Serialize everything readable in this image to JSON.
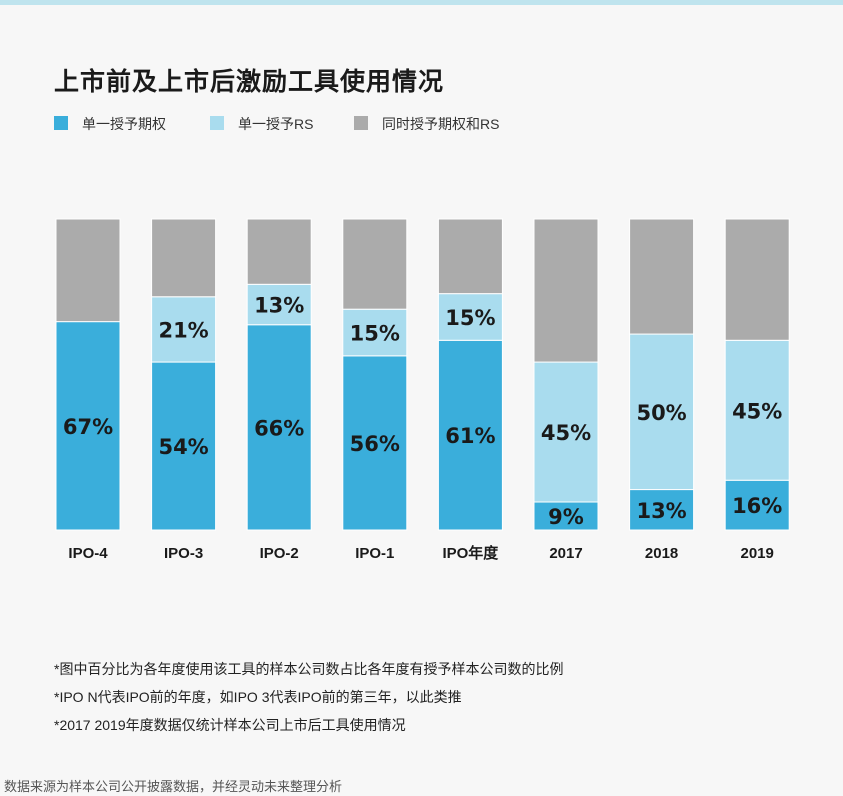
{
  "title": "上市前及上市后激励工具使用情况",
  "legend": [
    {
      "label": "单一授予期权",
      "color": "#3aaedb"
    },
    {
      "label": "单一授予RS",
      "color": "#a9dcee"
    },
    {
      "label": "同时授予期权和RS",
      "color": "#ababab"
    }
  ],
  "chart_data": {
    "type": "bar",
    "stacked": true,
    "categories": [
      "IPO-4",
      "IPO-3",
      "IPO-2",
      "IPO-1",
      "IPO年度",
      "2017",
      "2018",
      "2019"
    ],
    "series": [
      {
        "name": "单一授予期权",
        "color": "#3aaedb",
        "values": [
          67,
          54,
          66,
          56,
          61,
          9,
          13,
          16
        ],
        "labels": [
          "67%",
          "54%",
          "66%",
          "56%",
          "61%",
          "9%",
          "13%",
          "16%"
        ]
      },
      {
        "name": "单一授予RS",
        "color": "#a9dcee",
        "values": [
          0,
          21,
          13,
          15,
          15,
          45,
          50,
          45
        ],
        "labels": [
          "",
          "21%",
          "13%",
          "15%",
          "15%",
          "45%",
          "50%",
          "45%"
        ]
      },
      {
        "name": "同时授予期权和RS",
        "color": "#ababab",
        "values": [
          33,
          25,
          21,
          29,
          24,
          46,
          37,
          39
        ],
        "labels": [
          "",
          "",
          "",
          "",
          "",
          "",
          "",
          ""
        ]
      }
    ],
    "ylim": [
      0,
      100
    ],
    "grid": false,
    "legend_position": "top-left"
  },
  "notes": [
    "*图中百分比为各年度使用该工具的样本公司数占比各年度有授予样本公司数的比例",
    "*IPO  N代表IPO前的年度，如IPO  3代表IPO前的第三年，以此类推",
    "*2017  2019年度数据仅统计样本公司上市后工具使用情况"
  ],
  "source": "数据来源为样本公司公开披露数据，并经灵动未来整理分析"
}
